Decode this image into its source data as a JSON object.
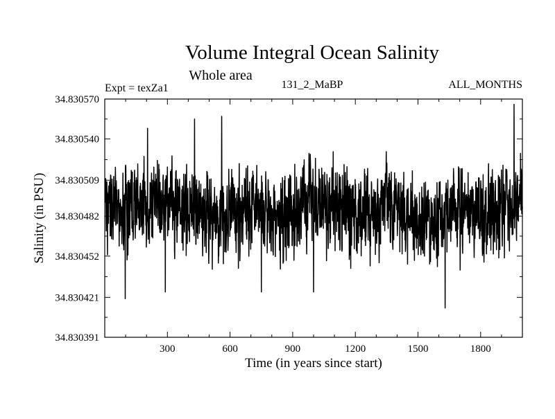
{
  "chart_data": {
    "type": "line",
    "title": "Volume Integral Ocean Salinity",
    "subtitle": "Whole area",
    "annotations": {
      "left": "Expt = texZa1",
      "center": "131_2_MaBP",
      "right": "ALL_MONTHS"
    },
    "xlabel": "Time (in years since start)",
    "ylabel": "Salinity (in PSU)",
    "xlim": [
      0,
      2000
    ],
    "ylim": [
      34.830391,
      34.83057
    ],
    "x_ticks": [
      300,
      600,
      900,
      1200,
      1500,
      1800
    ],
    "x_tick_labels": [
      "300",
      "600",
      "900",
      "1200",
      "1500",
      "1800"
    ],
    "y_ticks": [
      34.830391,
      34.830421,
      34.830452,
      34.830482,
      34.830509,
      34.83054,
      34.83057
    ],
    "y_tick_labels": [
      "34.830391",
      "34.830421",
      "34.830452",
      "34.830482",
      "34.830509",
      "34.830540",
      "34.830570"
    ],
    "grid": false,
    "series": [
      {
        "name": "salinity",
        "color": "#000000",
        "x_start": 1,
        "x_step": 1,
        "n_points": 2000,
        "mean": 34.830485,
        "std": 1.8e-05,
        "min": 34.830413,
        "max": 34.830566,
        "extremes": [
          {
            "x": 98,
            "y": 34.83042
          },
          {
            "x": 205,
            "y": 34.830548
          },
          {
            "x": 290,
            "y": 34.830425
          },
          {
            "x": 430,
            "y": 34.830555
          },
          {
            "x": 560,
            "y": 34.830557
          },
          {
            "x": 750,
            "y": 34.830425
          },
          {
            "x": 1000,
            "y": 34.830425
          },
          {
            "x": 1630,
            "y": 34.830413
          },
          {
            "x": 1960,
            "y": 34.830566
          }
        ]
      }
    ]
  }
}
